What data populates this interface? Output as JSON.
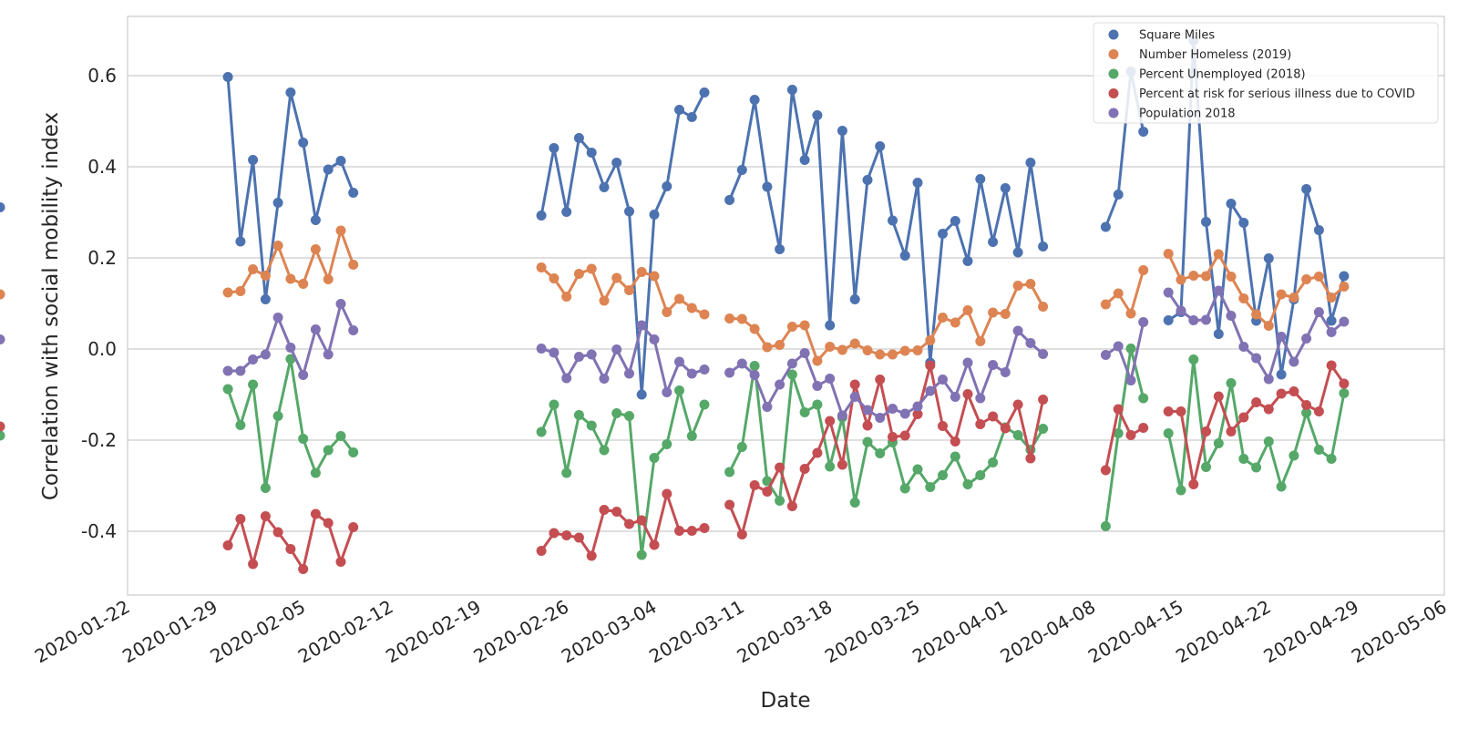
{
  "chart_data": {
    "type": "line",
    "title": "",
    "xlabel": "Date",
    "ylabel": "Correlation with social mobility index",
    "xlim": [
      "2020-01-22",
      "2020-05-06"
    ],
    "ylim": [
      -0.54,
      0.73
    ],
    "x_ticks": [
      "2020-01-22",
      "2020-01-29",
      "2020-02-05",
      "2020-02-12",
      "2020-02-19",
      "2020-02-26",
      "2020-03-04",
      "2020-03-11",
      "2020-03-18",
      "2020-03-25",
      "2020-04-01",
      "2020-04-08",
      "2020-04-15",
      "2020-04-22",
      "2020-04-29",
      "2020-05-06"
    ],
    "y_ticks": [
      "-0.4",
      "-0.2",
      "0.0",
      "0.2",
      "0.4",
      "0.6"
    ],
    "y_tick_values": [
      -0.4,
      -0.2,
      0.0,
      0.2,
      0.4,
      0.6
    ],
    "grid": "horizontal",
    "legend_position": "top-right",
    "segments": [
      {
        "start": "2020-01-30",
        "end": "2020-02-09"
      },
      {
        "start": "2020-02-24",
        "end": "2020-03-08"
      },
      {
        "start": "2020-03-10",
        "end": "2020-04-04"
      },
      {
        "start": "2020-04-09",
        "end": "2020-04-12"
      },
      {
        "start": "2020-04-14",
        "end": "2020-04-28"
      }
    ],
    "series": [
      {
        "name": "Square Miles",
        "color": "#4c72b0",
        "values": [
          0.597,
          0.236,
          0.415,
          0.109,
          0.321,
          0.563,
          0.453,
          0.283,
          0.394,
          0.413,
          0.343,
          0.293,
          0.441,
          0.301,
          0.463,
          0.431,
          0.355,
          0.409,
          0.302,
          -0.1,
          0.295,
          0.357,
          0.525,
          0.509,
          0.563,
          0.327,
          0.393,
          0.547,
          0.356,
          0.219,
          0.569,
          0.415,
          0.513,
          0.052,
          0.479,
          0.109,
          0.371,
          0.445,
          0.282,
          0.205,
          0.365,
          -0.03,
          0.253,
          0.281,
          0.193,
          0.373,
          0.235,
          0.353,
          0.212,
          0.409,
          0.225,
          0.268,
          0.339,
          0.609,
          0.477,
          0.063,
          0.081,
          0.677,
          0.279,
          0.033,
          0.319,
          0.277,
          0.062,
          0.199,
          -0.056,
          0.109,
          0.351,
          0.261,
          0.062,
          0.16,
          0.311
        ]
      },
      {
        "name": "Number Homeless (2019)",
        "color": "#dd8452",
        "values": [
          0.124,
          0.127,
          0.175,
          0.161,
          0.227,
          0.154,
          0.143,
          0.219,
          0.153,
          0.26,
          0.185,
          0.179,
          0.155,
          0.115,
          0.165,
          0.176,
          0.106,
          0.156,
          0.129,
          0.169,
          0.16,
          0.081,
          0.11,
          0.09,
          0.076,
          0.067,
          0.066,
          0.044,
          0.004,
          0.009,
          0.049,
          0.052,
          -0.026,
          0.005,
          -0.002,
          0.012,
          -0.003,
          -0.012,
          -0.012,
          -0.004,
          -0.003,
          0.019,
          0.069,
          0.058,
          0.085,
          0.017,
          0.08,
          0.077,
          0.139,
          0.143,
          0.093,
          0.098,
          0.122,
          0.078,
          0.173,
          0.209,
          0.152,
          0.161,
          0.16,
          0.208,
          0.159,
          0.111,
          0.076,
          0.051,
          0.12,
          0.113,
          0.153,
          0.159,
          0.113,
          0.137,
          0.12
        ]
      },
      {
        "name": "Percent Unemployed (2018)",
        "color": "#55a868",
        "values": [
          -0.088,
          -0.167,
          -0.078,
          -0.305,
          -0.147,
          -0.022,
          -0.197,
          -0.272,
          -0.222,
          -0.191,
          -0.227,
          -0.182,
          -0.122,
          -0.272,
          -0.145,
          -0.168,
          -0.222,
          -0.141,
          -0.147,
          -0.452,
          -0.239,
          -0.209,
          -0.091,
          -0.191,
          -0.122,
          -0.27,
          -0.215,
          -0.037,
          -0.29,
          -0.333,
          -0.056,
          -0.139,
          -0.122,
          -0.258,
          -0.15,
          -0.337,
          -0.204,
          -0.229,
          -0.205,
          -0.306,
          -0.264,
          -0.303,
          -0.277,
          -0.236,
          -0.297,
          -0.277,
          -0.249,
          -0.172,
          -0.189,
          -0.221,
          -0.175,
          -0.389,
          -0.185,
          0.001,
          -0.108,
          -0.185,
          -0.31,
          -0.023,
          -0.259,
          -0.207,
          -0.075,
          -0.241,
          -0.26,
          -0.203,
          -0.302,
          -0.234,
          -0.14,
          -0.221,
          -0.241,
          -0.097,
          -0.19
        ]
      },
      {
        "name": "Percent at risk for serious illness due to COVID",
        "color": "#c44e52",
        "values": [
          -0.431,
          -0.373,
          -0.472,
          -0.367,
          -0.402,
          -0.439,
          -0.483,
          -0.362,
          -0.382,
          -0.467,
          -0.391,
          -0.443,
          -0.404,
          -0.409,
          -0.414,
          -0.454,
          -0.353,
          -0.357,
          -0.384,
          -0.376,
          -0.43,
          -0.318,
          -0.399,
          -0.399,
          -0.393,
          -0.342,
          -0.407,
          -0.299,
          -0.313,
          -0.26,
          -0.345,
          -0.263,
          -0.228,
          -0.158,
          -0.254,
          -0.078,
          -0.168,
          -0.067,
          -0.193,
          -0.19,
          -0.143,
          -0.036,
          -0.169,
          -0.203,
          -0.099,
          -0.165,
          -0.148,
          -0.174,
          -0.122,
          -0.24,
          -0.111,
          -0.266,
          -0.132,
          -0.189,
          -0.173,
          -0.137,
          -0.137,
          -0.297,
          -0.181,
          -0.104,
          -0.181,
          -0.15,
          -0.117,
          -0.132,
          -0.098,
          -0.093,
          -0.123,
          -0.137,
          -0.036,
          -0.076,
          -0.17
        ]
      },
      {
        "name": "Population 2018",
        "color": "#8172b3",
        "values": [
          -0.048,
          -0.048,
          -0.023,
          -0.012,
          0.069,
          0.003,
          -0.057,
          0.043,
          -0.012,
          0.099,
          0.041,
          0.001,
          -0.008,
          -0.064,
          -0.017,
          -0.012,
          -0.065,
          -0.001,
          -0.054,
          0.052,
          0.021,
          -0.095,
          -0.028,
          -0.054,
          -0.045,
          -0.052,
          -0.032,
          -0.057,
          -0.127,
          -0.078,
          -0.032,
          -0.009,
          -0.081,
          -0.065,
          -0.146,
          -0.105,
          -0.134,
          -0.151,
          -0.131,
          -0.142,
          -0.126,
          -0.092,
          -0.067,
          -0.105,
          -0.03,
          -0.108,
          -0.035,
          -0.051,
          0.04,
          0.013,
          -0.011,
          -0.013,
          0.006,
          -0.069,
          0.059,
          0.124,
          0.084,
          0.063,
          0.064,
          0.128,
          0.073,
          0.005,
          -0.02,
          -0.066,
          0.027,
          -0.028,
          0.023,
          0.081,
          0.037,
          0.06,
          0.021
        ]
      }
    ]
  }
}
